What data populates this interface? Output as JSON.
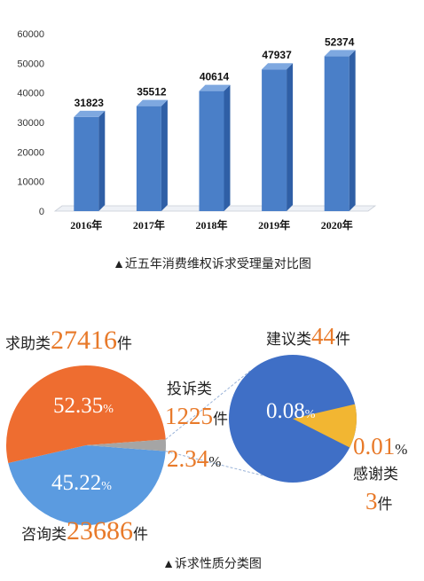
{
  "chart_data": [
    {
      "type": "bar",
      "categories": [
        "2016年",
        "2017年",
        "2018年",
        "2019年",
        "2020年"
      ],
      "values": [
        31823,
        35512,
        40614,
        47937,
        52374
      ],
      "data_labels": [
        "31823",
        "35512",
        "40614",
        "47937",
        "52374"
      ],
      "yticks": [
        "0",
        "10000",
        "20000",
        "30000",
        "40000",
        "50000",
        "60000"
      ],
      "ylim": [
        0,
        60000
      ],
      "bar_color": "#4a7fc8",
      "caption": "▲近五年消费维权诉求受理量对比图"
    },
    {
      "type": "pie",
      "caption": "▲诉求性质分类图",
      "slices": [
        {
          "name": "求助类",
          "count": "27416",
          "unit": "件",
          "percent": 52.35,
          "percent_text": "52.35",
          "color": "#ee6d30"
        },
        {
          "name": "咨询类",
          "count": "23686",
          "unit": "件",
          "percent": 45.22,
          "percent_text": "45.22",
          "color": "#5b9be0"
        },
        {
          "name": "投诉类",
          "count": "1225",
          "unit": "件",
          "percent": 2.34,
          "percent_text": "2.34",
          "color": "#a5a5a5"
        }
      ],
      "sub_pie": {
        "slices": [
          {
            "name": "建议类",
            "count": "44",
            "unit": "件",
            "percent": 0.08,
            "percent_text": "0.08",
            "color": "#3f6fc6"
          },
          {
            "name": "感谢类",
            "count": "3",
            "unit": "件",
            "percent": 0.01,
            "percent_text": "0.01",
            "color": "#f2b632"
          }
        ]
      },
      "percent_symbol": "%"
    }
  ]
}
